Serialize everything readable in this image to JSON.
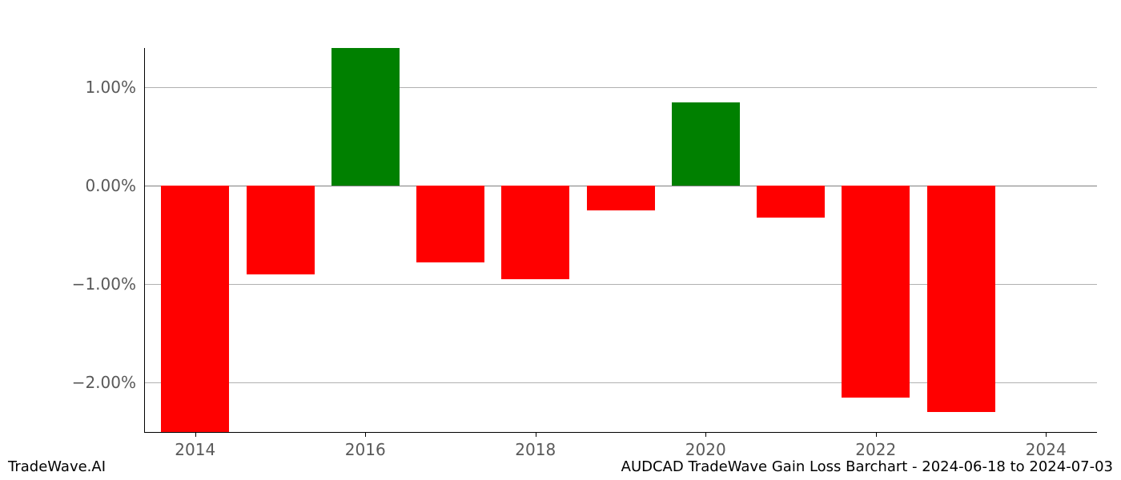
{
  "chart": {
    "type": "bar",
    "background_color": "#ffffff",
    "years": [
      2014,
      2015,
      2016,
      2017,
      2018,
      2019,
      2020,
      2021,
      2022,
      2023
    ],
    "values": [
      -2.5,
      -0.9,
      1.4,
      -0.78,
      -0.95,
      -0.25,
      0.85,
      -0.32,
      -2.15,
      -2.3
    ],
    "bar_colors": [
      "#ff0000",
      "#ff0000",
      "#008000",
      "#ff0000",
      "#ff0000",
      "#ff0000",
      "#008000",
      "#ff0000",
      "#ff0000",
      "#ff0000"
    ],
    "positive_color": "#008000",
    "negative_color": "#ff0000",
    "bar_width": 0.8,
    "ylim": [
      -2.5,
      1.4
    ],
    "ytick_values": [
      -2.0,
      -1.0,
      0.0,
      1.0
    ],
    "ytick_labels": [
      "−2.00%",
      "−1.00%",
      "0.00%",
      "1.00%"
    ],
    "xtick_values": [
      2014,
      2016,
      2018,
      2020,
      2022,
      2024
    ],
    "xtick_labels": [
      "2014",
      "2016",
      "2018",
      "2020",
      "2022",
      "2024"
    ],
    "xlim": [
      2013.4,
      2024.6
    ],
    "grid_color": "#b0b0b0",
    "zero_line_color": "#808080",
    "tick_fontsize": 20,
    "tick_color": "#595959",
    "spine_color": "#000000",
    "footer_fontsize": 18,
    "footer_color": "#000000"
  },
  "footer": {
    "left": "TradeWave.AI",
    "right": "AUDCAD TradeWave Gain Loss Barchart - 2024-06-18 to 2024-07-03"
  }
}
